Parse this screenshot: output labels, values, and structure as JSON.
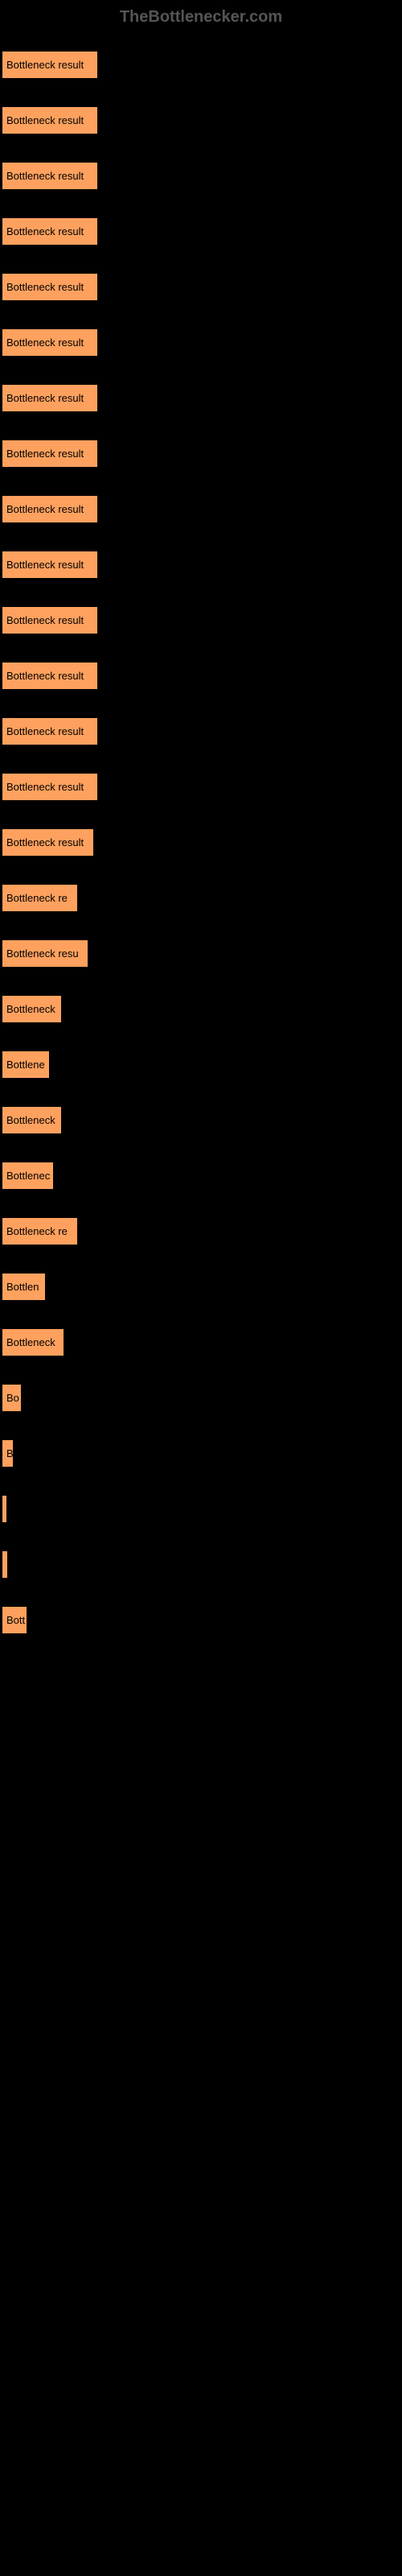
{
  "header": {
    "text": "TheBottlenecker.com",
    "color": "#555555"
  },
  "chart": {
    "background_color": "#000000",
    "bar_color": "#ffa15e",
    "bar_border_color": "#000000",
    "label_color": "#000000",
    "max_width": 120,
    "bars": [
      {
        "label": "Bottleneck result",
        "width": 120
      },
      {
        "label": "Bottleneck result",
        "width": 120
      },
      {
        "label": "Bottleneck result",
        "width": 120
      },
      {
        "label": "Bottleneck result",
        "width": 120
      },
      {
        "label": "Bottleneck result",
        "width": 120
      },
      {
        "label": "Bottleneck result",
        "width": 120
      },
      {
        "label": "Bottleneck result",
        "width": 120
      },
      {
        "label": "Bottleneck result",
        "width": 120
      },
      {
        "label": "Bottleneck result",
        "width": 120
      },
      {
        "label": "Bottleneck result",
        "width": 120
      },
      {
        "label": "Bottleneck result",
        "width": 120
      },
      {
        "label": "Bottleneck result",
        "width": 120
      },
      {
        "label": "Bottleneck result",
        "width": 120
      },
      {
        "label": "Bottleneck result",
        "width": 120
      },
      {
        "label": "Bottleneck result",
        "width": 115
      },
      {
        "label": "Bottleneck re",
        "width": 95
      },
      {
        "label": "Bottleneck resu",
        "width": 108
      },
      {
        "label": "Bottleneck",
        "width": 75
      },
      {
        "label": "Bottlene",
        "width": 60
      },
      {
        "label": "Bottleneck",
        "width": 75
      },
      {
        "label": "Bottlenec",
        "width": 65
      },
      {
        "label": "Bottleneck re",
        "width": 95
      },
      {
        "label": "Bottlen",
        "width": 55
      },
      {
        "label": "Bottleneck",
        "width": 78
      },
      {
        "label": "Bo",
        "width": 25
      },
      {
        "label": "B",
        "width": 15
      },
      {
        "label": "",
        "width": 5
      },
      {
        "label": "",
        "width": 8
      },
      {
        "label": "Bott",
        "width": 32
      }
    ]
  }
}
